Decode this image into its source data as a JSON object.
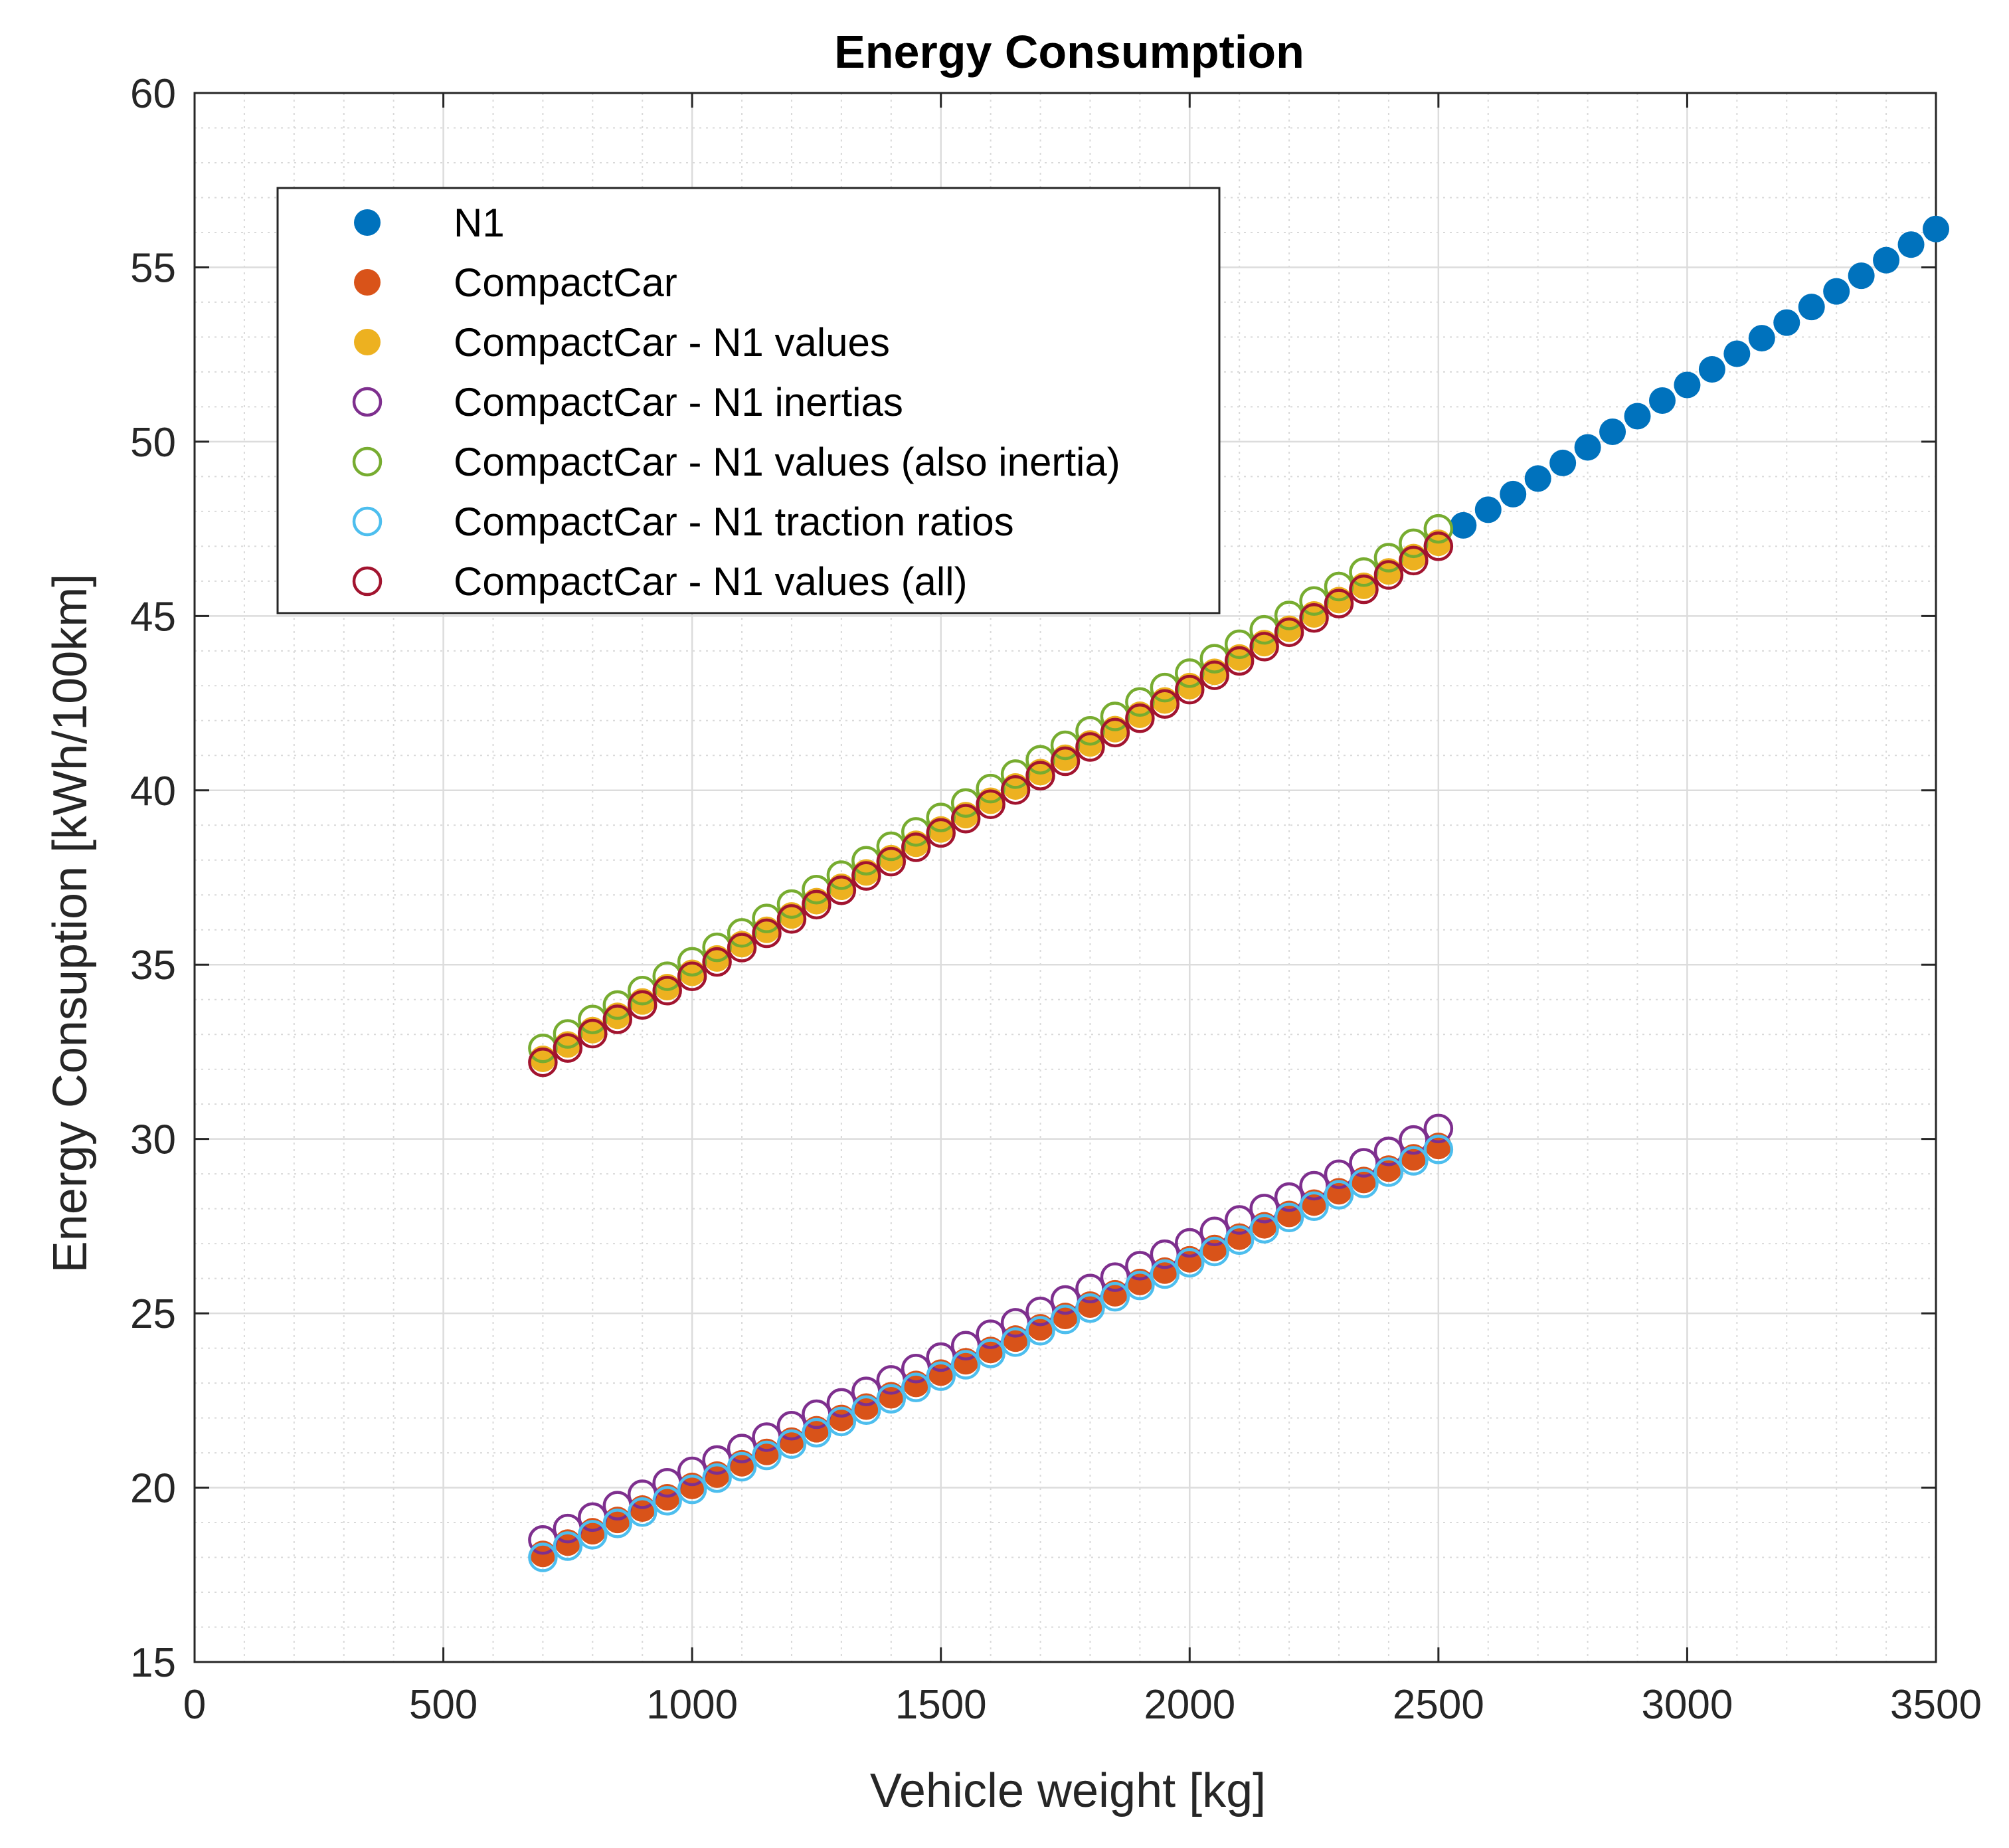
{
  "chart_data": {
    "type": "scatter",
    "title": "Energy Consumption",
    "xlabel": "Vehicle weight [kg]",
    "ylabel": "Energy Consuption [kWh/100km]",
    "xlim": [
      0,
      3500
    ],
    "ylim": [
      15,
      60
    ],
    "xticks": [
      0,
      500,
      1000,
      1500,
      2000,
      2500,
      3000,
      3500
    ],
    "yticks": [
      15,
      20,
      25,
      30,
      35,
      40,
      45,
      50,
      55,
      60
    ],
    "grid": true,
    "minor_grid": true,
    "legend_position": "top-left",
    "series": [
      {
        "name": "N1",
        "marker": "filled",
        "color": "#0072BD",
        "x_start": 2550,
        "x_end": 3500,
        "x_step": 50,
        "y_start": 47.6,
        "y_end": 56.1
      },
      {
        "name": "CompactCar",
        "marker": "filled",
        "color": "#D95319",
        "x_start": 700,
        "x_end": 2500,
        "x_step": 50,
        "y_start": 18.1,
        "y_end": 29.8
      },
      {
        "name": "CompactCar - N1 values",
        "marker": "filled",
        "color": "#EDB120",
        "x_start": 700,
        "x_end": 2500,
        "x_step": 50,
        "y_start": 32.3,
        "y_end": 47.1
      },
      {
        "name": "CompactCar - N1 inertias",
        "marker": "open",
        "color": "#7E2F8E",
        "x_start": 700,
        "x_end": 2500,
        "x_step": 50,
        "y_start": 18.5,
        "y_end": 30.3
      },
      {
        "name": "CompactCar - N1 values (also inertia)",
        "marker": "open",
        "color": "#77AC30",
        "x_start": 700,
        "x_end": 2500,
        "x_step": 50,
        "y_start": 32.6,
        "y_end": 47.5
      },
      {
        "name": "CompactCar - N1 traction ratios",
        "marker": "open",
        "color": "#4DBEEE",
        "x_start": 700,
        "x_end": 2500,
        "x_step": 50,
        "y_start": 18.0,
        "y_end": 29.7
      },
      {
        "name": "CompactCar - N1 values (all)",
        "marker": "open",
        "color": "#A2142F",
        "x_start": 700,
        "x_end": 2500,
        "x_step": 50,
        "y_start": 32.2,
        "y_end": 47.0
      }
    ]
  }
}
